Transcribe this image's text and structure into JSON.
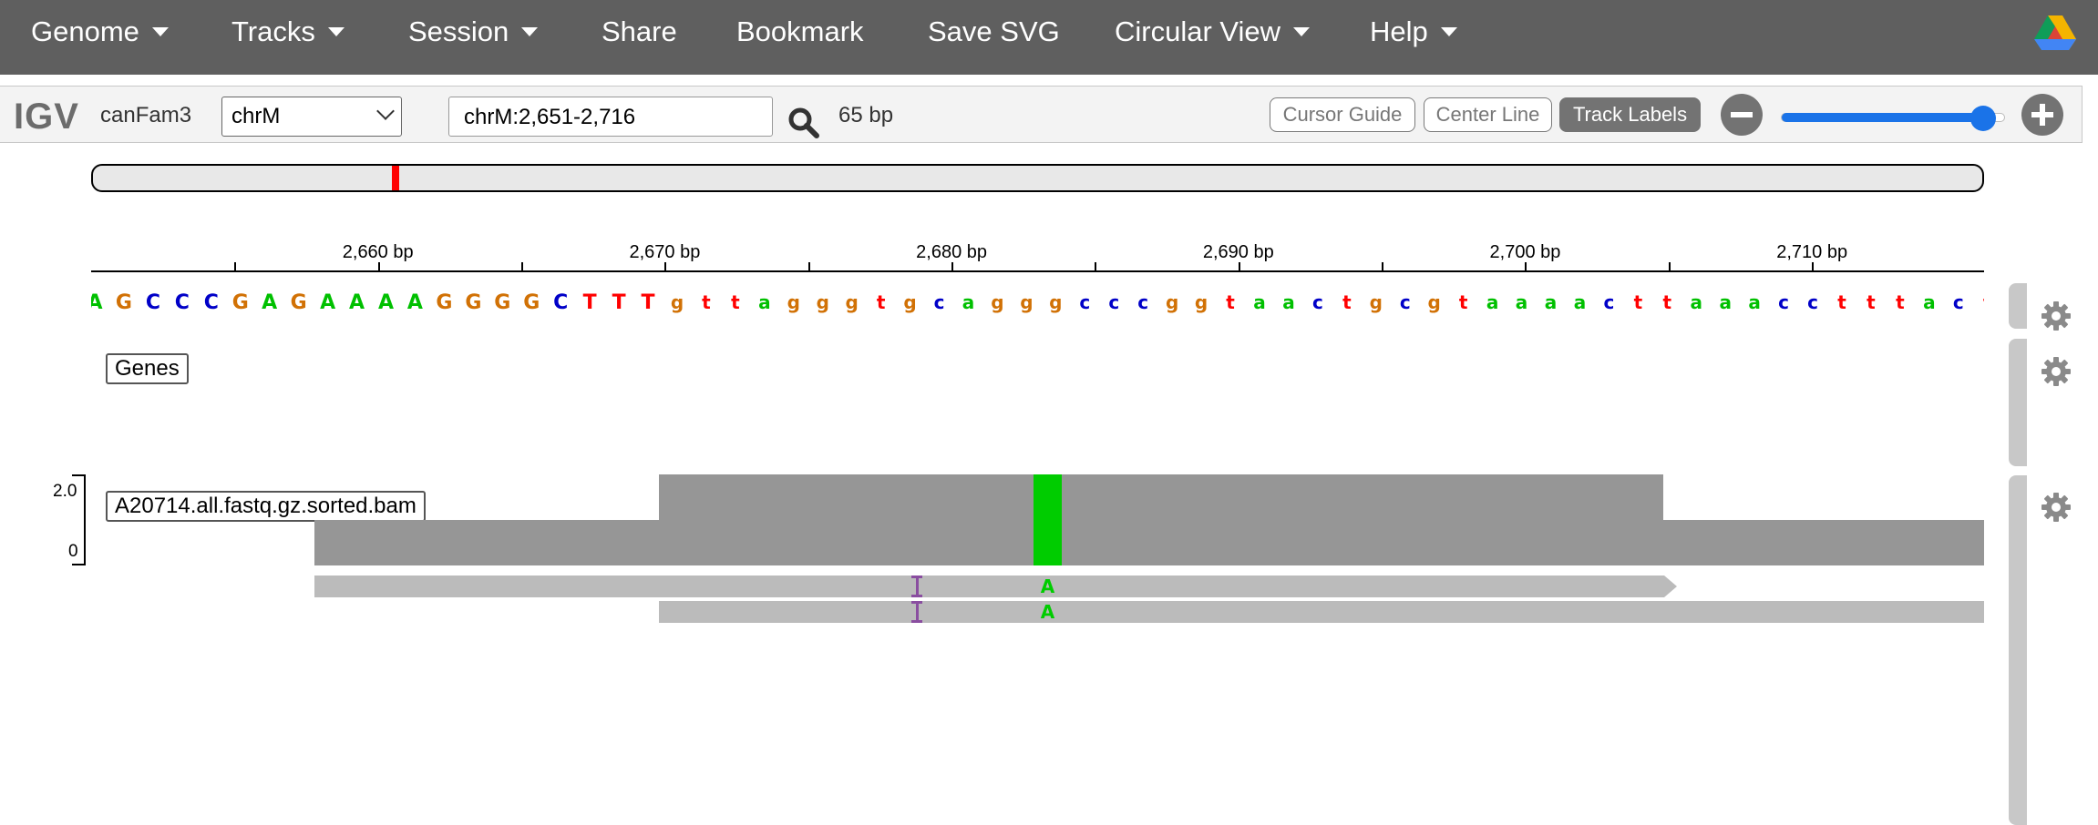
{
  "navbar": {
    "menus": [
      {
        "label": "Genome",
        "dropdown": true
      },
      {
        "label": "Tracks",
        "dropdown": true
      },
      {
        "label": "Session",
        "dropdown": true
      },
      {
        "label": "Share",
        "dropdown": false
      },
      {
        "label": "Bookmark",
        "dropdown": false
      },
      {
        "label": "Save SVG",
        "dropdown": false
      },
      {
        "label": "Circular View",
        "dropdown": true
      },
      {
        "label": "Help",
        "dropdown": true
      }
    ],
    "logo_icon": "google-drive-icon"
  },
  "toolbar": {
    "app_logo": "IGV",
    "genome": "canFam3",
    "chromosome": "chrM",
    "locus": "chrM:2,651-2,716",
    "search_icon": "magnifier-icon",
    "width_label": "65 bp",
    "cursor_guide_label": "Cursor Guide",
    "center_line_label": "Center Line",
    "track_labels_label": "Track Labels",
    "track_labels_active": true,
    "zoom_level_fraction": 0.9
  },
  "ideogram": {
    "marker_color": "#ff0000",
    "marker_fraction": 0.158
  },
  "ruler": {
    "start": 2651,
    "end": 2716,
    "partial_label": "bp",
    "ticks": [
      {
        "pos": 2655,
        "label": ""
      },
      {
        "pos": 2660,
        "label": "2,660 bp"
      },
      {
        "pos": 2665,
        "label": ""
      },
      {
        "pos": 2670,
        "label": "2,670 bp"
      },
      {
        "pos": 2675,
        "label": ""
      },
      {
        "pos": 2680,
        "label": "2,680 bp"
      },
      {
        "pos": 2685,
        "label": ""
      },
      {
        "pos": 2690,
        "label": "2,690 bp"
      },
      {
        "pos": 2695,
        "label": ""
      },
      {
        "pos": 2700,
        "label": "2,700 bp"
      },
      {
        "pos": 2705,
        "label": ""
      },
      {
        "pos": 2710,
        "label": "2,710 bp"
      }
    ]
  },
  "sequence": {
    "bases": "AGCCCGAGAAAAGGGGCTTTgttagggtgcagggcccggtaactgcgtaaaacttaaacctttact",
    "colors": {
      "A": "#00c000",
      "C": "#0000c8",
      "G": "#d17105",
      "T": "#ff0000"
    }
  },
  "tracks": {
    "genes_label": "Genes",
    "bam_label": "A20714.all.fastq.gz.sorted.bam",
    "coverage_max": "2.0",
    "coverage_min": "0",
    "coverage": [
      {
        "start": 2657.8,
        "end": 2669.8,
        "depth": 1
      },
      {
        "start": 2669.8,
        "end": 2682.85,
        "depth": 2
      },
      {
        "start": 2682.85,
        "end": 2683.85,
        "depth": 2,
        "mismatch": "A"
      },
      {
        "start": 2683.85,
        "end": 2704.8,
        "depth": 2
      },
      {
        "start": 2704.8,
        "end": 2716.5,
        "depth": 1
      }
    ],
    "reads": [
      {
        "start": 2657.8,
        "end": 2705.3,
        "strand": "+",
        "insertion_at": 2678.8,
        "mismatch_at": 2683.35,
        "mismatch_base": "A"
      },
      {
        "start": 2669.8,
        "end": 2716.5,
        "strand": "+",
        "insertion_at": 2678.8,
        "mismatch_at": 2683.35,
        "mismatch_base": "A"
      }
    ]
  },
  "settings_icon": "gear-icon"
}
